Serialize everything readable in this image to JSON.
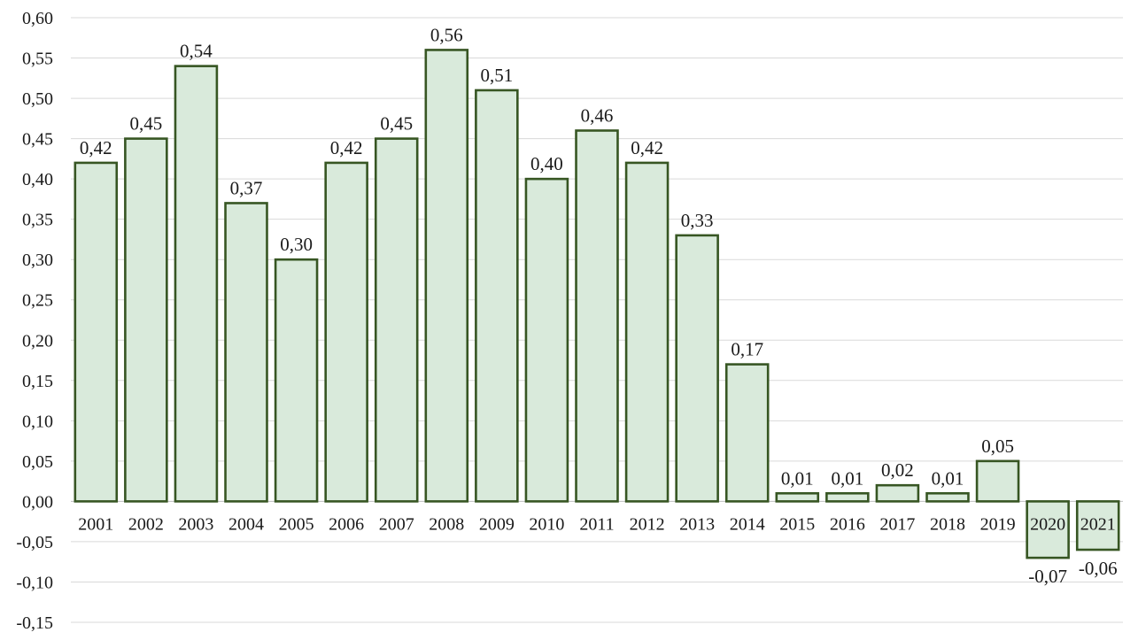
{
  "chart_data": {
    "type": "bar",
    "title": "",
    "xlabel": "",
    "ylabel": "",
    "categories": [
      "2001",
      "2002",
      "2003",
      "2004",
      "2005",
      "2006",
      "2007",
      "2008",
      "2009",
      "2010",
      "2011",
      "2012",
      "2013",
      "2014",
      "2015",
      "2016",
      "2017",
      "2018",
      "2019",
      "2020",
      "2021"
    ],
    "values": [
      0.42,
      0.45,
      0.54,
      0.37,
      0.3,
      0.42,
      0.45,
      0.56,
      0.51,
      0.4,
      0.46,
      0.42,
      0.33,
      0.17,
      0.01,
      0.01,
      0.02,
      0.01,
      0.05,
      -0.07,
      -0.06
    ],
    "data_labels": [
      "0,42",
      "0,45",
      "0,54",
      "0,37",
      "0,30",
      "0,42",
      "0,45",
      "0,56",
      "0,51",
      "0,40",
      "0,46",
      "0,42",
      "0,33",
      "0,17",
      "0,01",
      "0,01",
      "0,02",
      "0,01",
      "0,05",
      "-0,07",
      "-0,06"
    ],
    "ylim": [
      -0.15,
      0.6
    ],
    "yticks": [
      0.6,
      0.55,
      0.5,
      0.45,
      0.4,
      0.35,
      0.3,
      0.25,
      0.2,
      0.15,
      0.1,
      0.05,
      0.0,
      -0.05,
      -0.1,
      -0.15
    ],
    "ytick_labels": [
      "0,60",
      "0,55",
      "0,50",
      "0,45",
      "0,40",
      "0,35",
      "0,30",
      "0,25",
      "0,20",
      "0,15",
      "0,10",
      "0,05",
      "0,00",
      "-0,05",
      "-0,10",
      "-0,15"
    ],
    "grid": true,
    "legend": "none",
    "colors": {
      "bar_fill": "#d9eadb",
      "bar_stroke": "#375623",
      "grid": "#d9d9d9",
      "text": "#1a1a1a"
    }
  }
}
